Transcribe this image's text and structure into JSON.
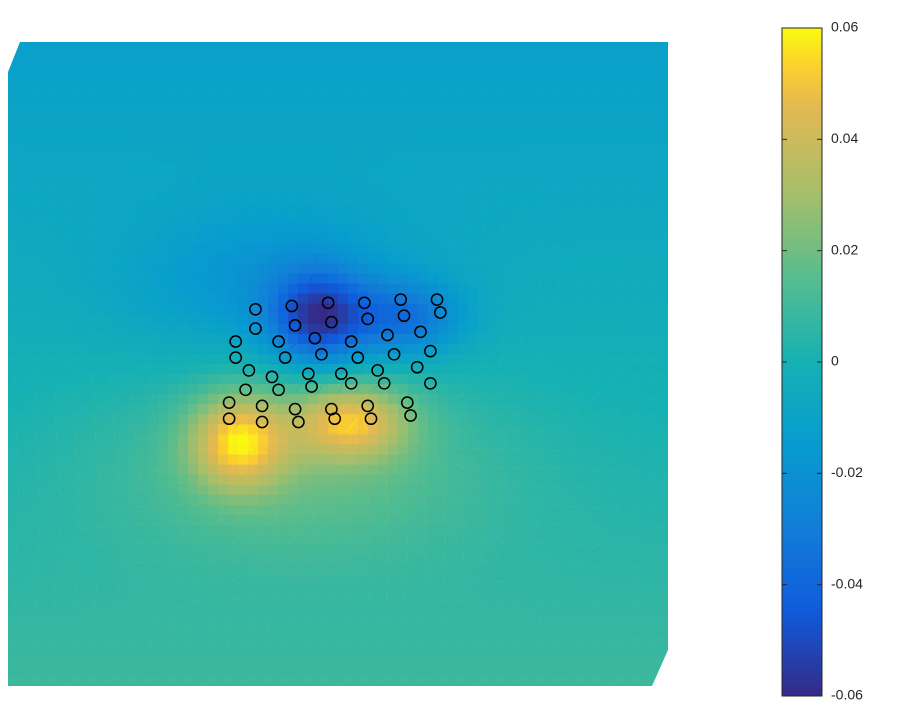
{
  "chart_data": {
    "type": "heatmap",
    "title": "",
    "xlabel": "",
    "ylabel": "",
    "colormap": "parula",
    "clim": [
      -0.06,
      0.06
    ],
    "colorbar": {
      "location": "right",
      "ticks": [
        -0.06,
        -0.04,
        -0.02,
        0,
        0.02,
        0.04,
        0.06
      ],
      "tick_labels": [
        "-0.06",
        "-0.04",
        "-0.02",
        "0",
        "0.02",
        "0.04",
        "0.06"
      ]
    },
    "field_sources": [
      {
        "x": 0.47,
        "y": 0.57,
        "amplitude": -0.045,
        "sx": 0.05,
        "sy": 0.05
      },
      {
        "x": 0.6,
        "y": 0.57,
        "amplitude": -0.03,
        "sx": 0.06,
        "sy": 0.04
      },
      {
        "x": 0.4,
        "y": 0.62,
        "amplitude": -0.015,
        "sx": 0.15,
        "sy": 0.08
      },
      {
        "x": 0.35,
        "y": 0.38,
        "amplitude": 0.045,
        "sx": 0.05,
        "sy": 0.05
      },
      {
        "x": 0.52,
        "y": 0.41,
        "amplitude": 0.04,
        "sx": 0.06,
        "sy": 0.04
      },
      {
        "x": 0.45,
        "y": 0.35,
        "amplitude": 0.016,
        "sx": 0.2,
        "sy": 0.1
      }
    ],
    "background_levels": {
      "top": -0.012,
      "bottom": 0.009
    },
    "markers": {
      "style": "open-circle",
      "color": "#000000",
      "points": [
        [
          0.375,
          0.585
        ],
        [
          0.43,
          0.59
        ],
        [
          0.485,
          0.595
        ],
        [
          0.54,
          0.595
        ],
        [
          0.595,
          0.6
        ],
        [
          0.65,
          0.6
        ],
        [
          0.375,
          0.555
        ],
        [
          0.435,
          0.56
        ],
        [
          0.49,
          0.565
        ],
        [
          0.545,
          0.57
        ],
        [
          0.6,
          0.575
        ],
        [
          0.655,
          0.58
        ],
        [
          0.345,
          0.535
        ],
        [
          0.41,
          0.535
        ],
        [
          0.465,
          0.54
        ],
        [
          0.52,
          0.535
        ],
        [
          0.575,
          0.545
        ],
        [
          0.625,
          0.55
        ],
        [
          0.345,
          0.51
        ],
        [
          0.42,
          0.51
        ],
        [
          0.475,
          0.515
        ],
        [
          0.53,
          0.51
        ],
        [
          0.585,
          0.515
        ],
        [
          0.64,
          0.52
        ],
        [
          0.365,
          0.49
        ],
        [
          0.4,
          0.48
        ],
        [
          0.455,
          0.485
        ],
        [
          0.505,
          0.485
        ],
        [
          0.56,
          0.49
        ],
        [
          0.62,
          0.495
        ],
        [
          0.36,
          0.46
        ],
        [
          0.41,
          0.46
        ],
        [
          0.46,
          0.465
        ],
        [
          0.52,
          0.47
        ],
        [
          0.57,
          0.47
        ],
        [
          0.64,
          0.47
        ],
        [
          0.335,
          0.44
        ],
        [
          0.385,
          0.435
        ],
        [
          0.435,
          0.43
        ],
        [
          0.49,
          0.43
        ],
        [
          0.545,
          0.435
        ],
        [
          0.605,
          0.44
        ],
        [
          0.335,
          0.415
        ],
        [
          0.385,
          0.41
        ],
        [
          0.44,
          0.41
        ],
        [
          0.495,
          0.415
        ],
        [
          0.55,
          0.415
        ],
        [
          0.61,
          0.42
        ]
      ]
    }
  }
}
